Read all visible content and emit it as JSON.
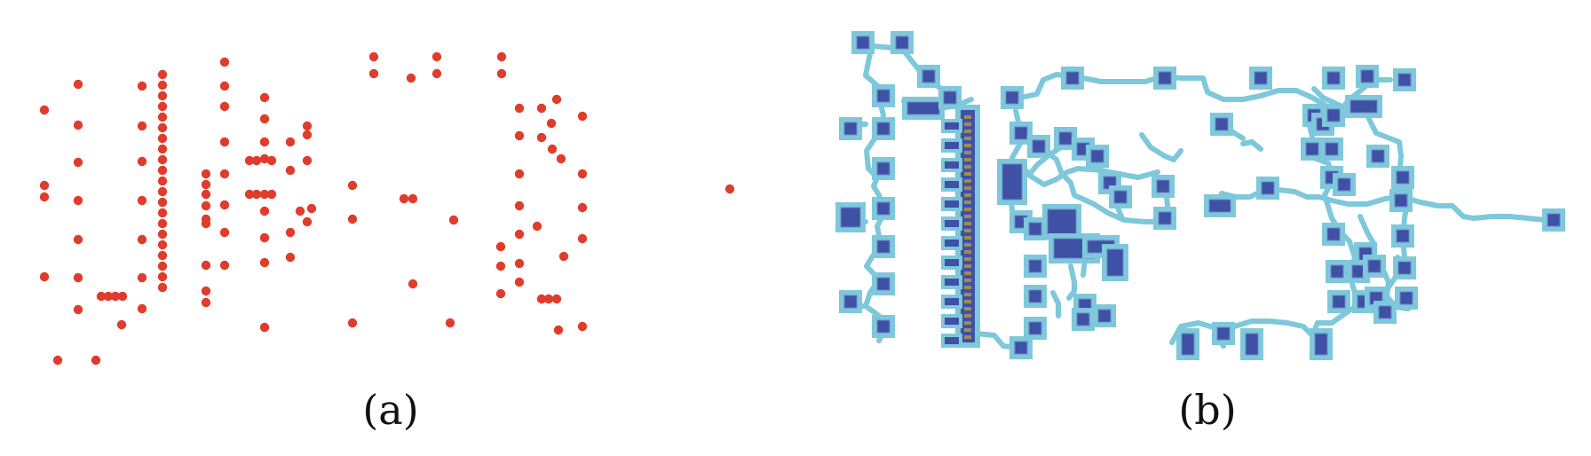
{
  "captions": {
    "a": "(a)",
    "b": "(b)"
  },
  "colors": {
    "background": "#ffffff",
    "dot": "#e03c2c",
    "route": "#7ec8db",
    "pad": "#3f51a5",
    "pad_outline": "#6f86c6",
    "via_stripe": "#a08a5a"
  },
  "panel_a": {
    "type": "scatter",
    "description_free": true
  },
  "panel_b": {
    "type": "routing-grid"
  }
}
